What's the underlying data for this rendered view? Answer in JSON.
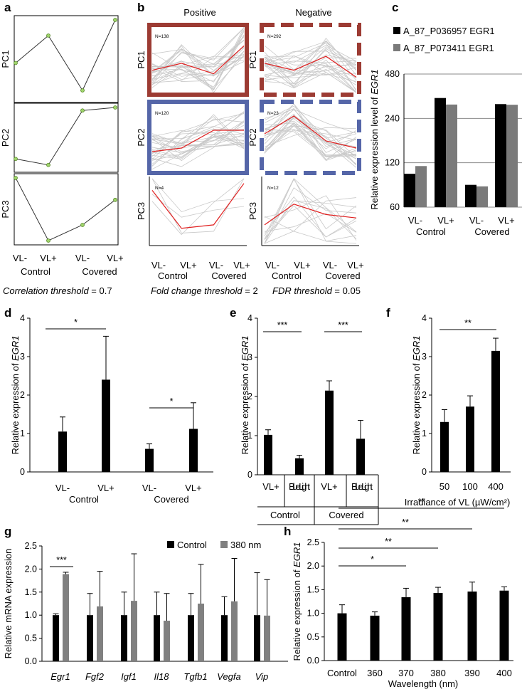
{
  "chart_data": [
    {
      "panel": "a",
      "type": "line",
      "rows": [
        "PC1",
        "PC2",
        "PC3"
      ],
      "categories": [
        "VL-",
        "VL+",
        "VL-",
        "VL+"
      ],
      "groups": [
        "Control",
        "Covered"
      ],
      "series": [
        {
          "name": "PC1",
          "values": [
            0.45,
            0.8,
            0.1,
            1.0
          ]
        },
        {
          "name": "PC2",
          "values": [
            0.15,
            0.05,
            0.95,
            1.0
          ]
        },
        {
          "name": "PC3",
          "values": [
            1.0,
            0.0,
            0.25,
            0.65
          ]
        }
      ],
      "caption_italic": "Correlation threshold",
      "caption_value": " = 0.7"
    },
    {
      "panel": "b",
      "type": "line",
      "columns": [
        "Positive",
        "Negative"
      ],
      "rows": [
        "PC1",
        "PC2",
        "PC3"
      ],
      "categories": [
        "VL-",
        "VL+",
        "VL-",
        "VL+"
      ],
      "groups": [
        "Control",
        "Covered"
      ],
      "n_labels": [
        [
          "N=138",
          "N=292"
        ],
        [
          "N=120",
          "N=23"
        ],
        [
          "N=4",
          "N=12"
        ]
      ],
      "mean_profiles": [
        [
          [
            0.35,
            0.45,
            0.3,
            0.7
          ],
          [
            0.45,
            0.35,
            0.55,
            0.25
          ]
        ],
        [
          [
            0.3,
            0.35,
            0.6,
            0.6
          ],
          [
            0.55,
            0.8,
            0.45,
            0.35
          ]
        ],
        [
          [
            0.8,
            0.25,
            0.3,
            0.9
          ],
          [
            0.3,
            0.6,
            0.45,
            0.4
          ]
        ]
      ],
      "captions": [
        {
          "italic": "Fold change threshold",
          "value": " = 2"
        },
        {
          "italic": "FDR threshold",
          "value": " = 0.05"
        }
      ]
    },
    {
      "panel": "c",
      "type": "bar",
      "categories": [
        "VL-",
        "VL+",
        "VL-",
        "VL+"
      ],
      "groups": [
        "Control",
        "Covered"
      ],
      "series": [
        {
          "name": "A_87_P036957 EGR1",
          "values": [
            101,
            330,
            85,
            300
          ]
        },
        {
          "name": "A_87_P073411 EGR1",
          "values": [
            114,
            298,
            83,
            297
          ]
        }
      ],
      "ylabel_prefix": "Relative expression level of ",
      "ylabel_gene": "EGR1",
      "yscale": "log",
      "yticks": [
        60,
        120,
        240,
        480
      ],
      "ylim": [
        60,
        480
      ]
    },
    {
      "panel": "d",
      "type": "bar",
      "categories": [
        "VL-",
        "VL+",
        "VL-",
        "VL+"
      ],
      "groups": [
        "Control",
        "Covered"
      ],
      "values": [
        1.05,
        2.4,
        0.6,
        1.12
      ],
      "errors": [
        0.38,
        1.13,
        0.13,
        0.68
      ],
      "ylabel_prefix": "Relative expression of ",
      "ylabel_gene": "EGR1",
      "ylim": [
        0,
        4
      ],
      "yticks": [
        0,
        1,
        2,
        3,
        4
      ],
      "significance": [
        {
          "from": 0,
          "to": 1,
          "label": "*"
        },
        {
          "from": 2,
          "to": 3,
          "label": "*"
        }
      ]
    },
    {
      "panel": "e",
      "type": "bar",
      "categories": [
        "VL+",
        "Blue Light",
        "VL+",
        "Blue Light"
      ],
      "groups": [
        "Control",
        "Covered"
      ],
      "values": [
        1.02,
        0.42,
        2.15,
        0.92
      ],
      "errors": [
        0.13,
        0.08,
        0.25,
        0.47
      ],
      "ylabel_prefix": "Relative expression of ",
      "ylabel_gene": "EGR1",
      "ylim": [
        0,
        4
      ],
      "yticks": [
        0,
        1,
        2,
        3,
        4
      ],
      "significance": [
        {
          "from": 0,
          "to": 1,
          "label": "***"
        },
        {
          "from": 2,
          "to": 3,
          "label": "***"
        }
      ]
    },
    {
      "panel": "f",
      "type": "bar",
      "categories": [
        "50",
        "100",
        "400"
      ],
      "values": [
        1.3,
        1.7,
        3.15
      ],
      "errors": [
        0.32,
        0.28,
        0.33
      ],
      "xlabel": "Irradiance of VL (µW/cm²)",
      "ylabel_prefix": "Relative expression of ",
      "ylabel_gene": "EGR1",
      "ylim": [
        0,
        4
      ],
      "yticks": [
        0,
        1,
        2,
        3,
        4
      ],
      "significance": [
        {
          "from": 0,
          "to": 2,
          "label": "**"
        }
      ]
    },
    {
      "panel": "g",
      "type": "bar",
      "categories": [
        "Egr1",
        "Fgf2",
        "Igf1",
        "Il18",
        "Tgfb1",
        "Vegfa",
        "Vip"
      ],
      "series": [
        {
          "name": "Control",
          "color": "#000000",
          "values": [
            1.0,
            1.0,
            1.0,
            1.0,
            1.0,
            1.0,
            1.0
          ],
          "errors": [
            0.03,
            0.47,
            0.5,
            0.5,
            0.47,
            0.4,
            0.92
          ]
        },
        {
          "name": "380 nm",
          "color": "#808080",
          "values": [
            1.89,
            1.19,
            1.31,
            0.88,
            1.25,
            1.3,
            0.99
          ],
          "errors": [
            0.04,
            0.76,
            1.02,
            0.59,
            0.85,
            0.93,
            0.78
          ]
        }
      ],
      "ylabel": "Relative mRNA expression",
      "ylim": [
        0,
        2.5
      ],
      "yticks": [
        "0.0",
        "0.5",
        "1.0",
        "1.5",
        "2.0",
        "2.5"
      ],
      "significance": [
        {
          "category": 0,
          "label": "***"
        }
      ]
    },
    {
      "panel": "h",
      "type": "bar",
      "categories": [
        "Control",
        "360",
        "370",
        "380",
        "390",
        "400"
      ],
      "values": [
        1.0,
        0.95,
        1.34,
        1.43,
        1.46,
        1.48
      ],
      "errors": [
        0.18,
        0.08,
        0.19,
        0.12,
        0.2,
        0.08
      ],
      "xlabel": "Wavelength (nm)",
      "ylabel_prefix": "Relative expression of ",
      "ylabel_gene": "EGR1",
      "ylim": [
        0,
        2.5
      ],
      "yticks": [
        "0.0",
        "0.5",
        "1.0",
        "1.5",
        "2.0",
        "2.5"
      ],
      "significance": [
        {
          "from": 0,
          "to": 2,
          "label": "*"
        },
        {
          "from": 0,
          "to": 3,
          "label": "**"
        },
        {
          "from": 0,
          "to": 4,
          "label": "**"
        },
        {
          "from": 0,
          "to": 5,
          "label": "**"
        }
      ]
    }
  ]
}
